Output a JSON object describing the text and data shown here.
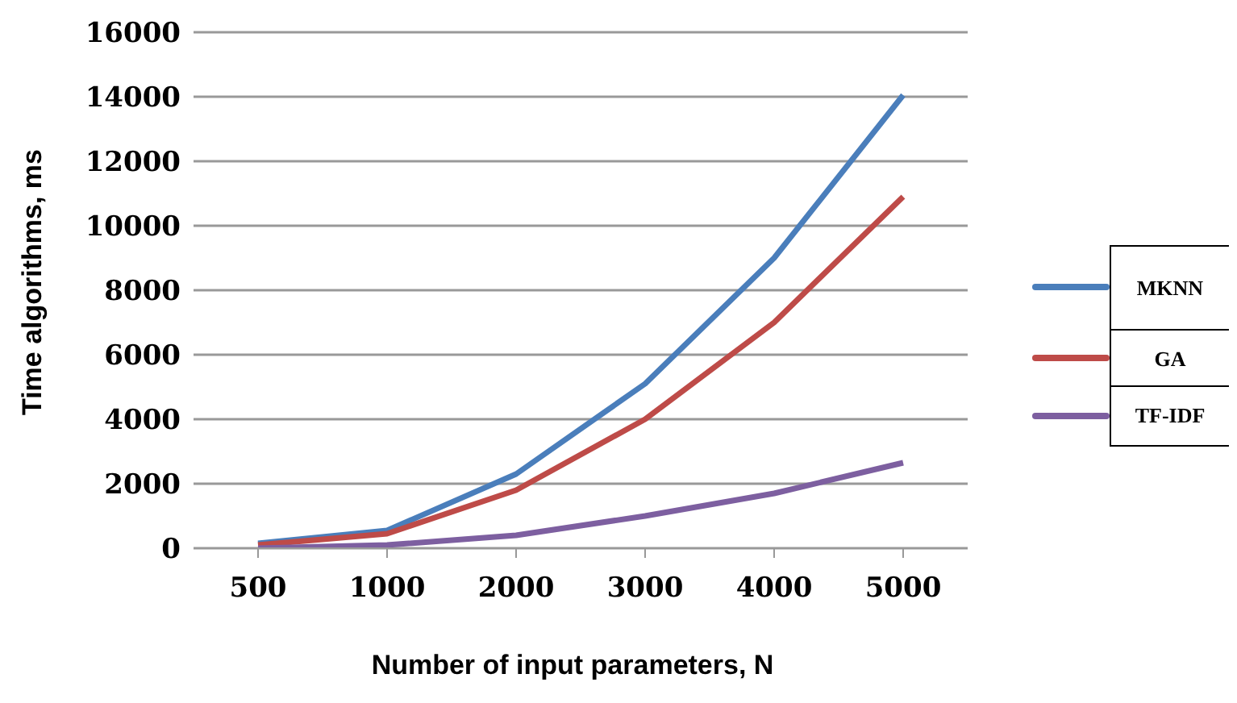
{
  "chart_data": {
    "type": "line",
    "xlabel": "Number of input parameters, N",
    "ylabel": "Time algorithms, ms",
    "categories": [
      "500",
      "1000",
      "2000",
      "3000",
      "4000",
      "5000"
    ],
    "series": [
      {
        "name": "MKNN",
        "color": "#4a7ebb",
        "values": [
          150,
          550,
          2300,
          5100,
          9000,
          14050
        ]
      },
      {
        "name": "GA",
        "color": "#be4b48",
        "values": [
          100,
          450,
          1800,
          4000,
          7000,
          10900
        ]
      },
      {
        "name": "TF-IDF",
        "color": "#7d5fa0",
        "values": [
          0,
          100,
          400,
          1000,
          1700,
          2650
        ]
      }
    ],
    "ylim": [
      0,
      16000
    ],
    "yticks": [
      0,
      2000,
      4000,
      6000,
      8000,
      10000,
      12000,
      14000,
      16000
    ],
    "grid": "y",
    "legend": "right",
    "marker": "none",
    "line_style": "solid"
  }
}
